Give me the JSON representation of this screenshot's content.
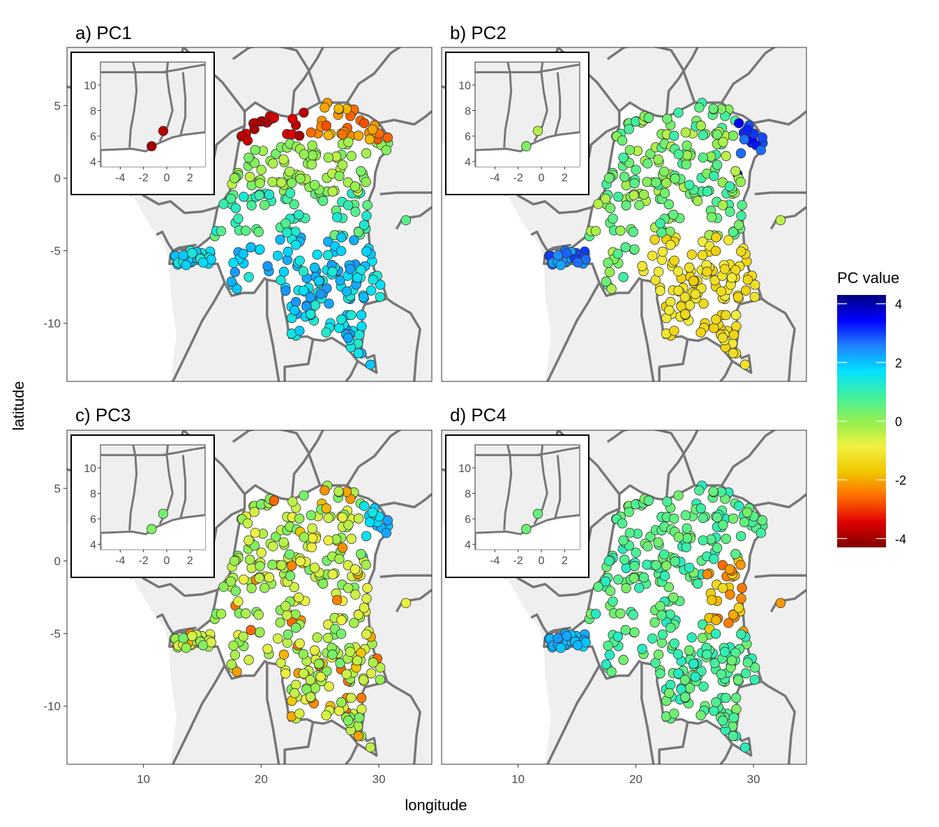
{
  "panels": [
    {
      "id": "pc1",
      "title": "a) PC1",
      "inset_points": [
        {
          "lon": -0.3,
          "lat": 6.4,
          "value": -3.8
        },
        {
          "lon": -1.3,
          "lat": 5.2,
          "value": -4.0
        }
      ]
    },
    {
      "id": "pc2",
      "title": "b) PC2",
      "inset_points": [
        {
          "lon": -0.3,
          "lat": 6.4,
          "value": -0.3
        },
        {
          "lon": -1.3,
          "lat": 5.2,
          "value": 0.2
        }
      ]
    },
    {
      "id": "pc3",
      "title": "c) PC3",
      "inset_points": [
        {
          "lon": -0.3,
          "lat": 6.4,
          "value": 0.3
        },
        {
          "lon": -1.3,
          "lat": 5.2,
          "value": 0.2
        }
      ]
    },
    {
      "id": "pc4",
      "title": "d) PC4",
      "inset_points": [
        {
          "lon": -0.3,
          "lat": 6.4,
          "value": 0.5
        },
        {
          "lon": -1.3,
          "lat": 5.2,
          "value": 0.4
        }
      ]
    }
  ],
  "axes": {
    "xlabel": "longitude",
    "ylabel": "latitude",
    "x_ticks": [
      10,
      20,
      30
    ],
    "y_ticks": [
      5,
      0,
      -5,
      -10
    ],
    "x_range": [
      3.5,
      34.5
    ],
    "y_range": [
      -14,
      9
    ]
  },
  "inset_axes": {
    "x_ticks": [
      -4,
      -2,
      0,
      2
    ],
    "y_ticks": [
      10,
      8,
      6,
      4
    ],
    "x_range": [
      -5.7,
      3.3
    ],
    "y_range": [
      3.6,
      11.8
    ]
  },
  "legend": {
    "title": "PC value",
    "ticks": [
      4,
      2,
      0,
      -2,
      -4
    ],
    "range": [
      -4.3,
      4.3
    ],
    "colors": [
      "#800000",
      "#e00000",
      "#ff6a00",
      "#f0c800",
      "#f0f040",
      "#90f050",
      "#40f0a0",
      "#00e0ff",
      "#2080ff",
      "#0000ff",
      "#000080"
    ]
  }
}
